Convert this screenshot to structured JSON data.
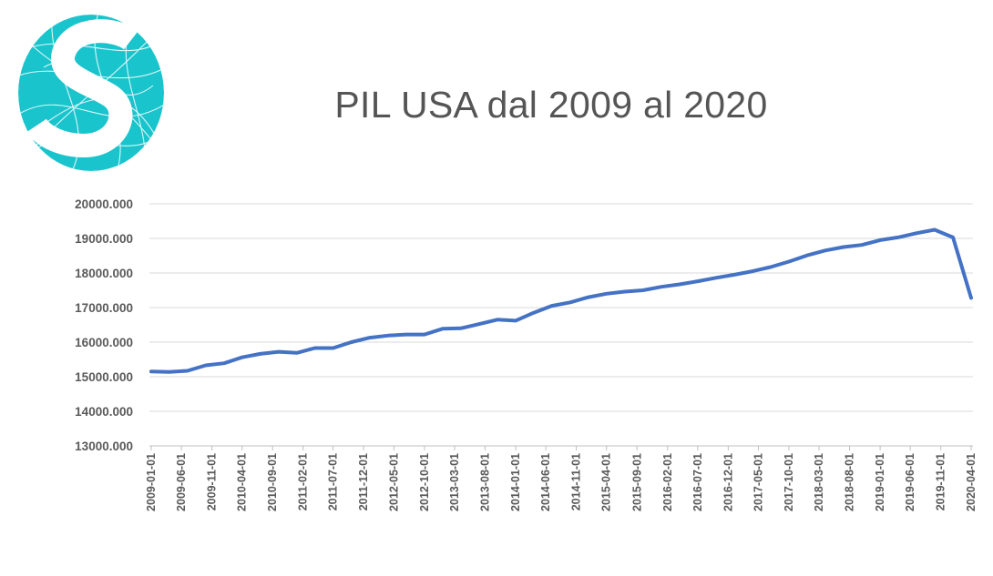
{
  "title": "PIL USA dal 2009 al 2020",
  "colors": {
    "line": "#4472C4",
    "grid": "#d9d9d9",
    "text": "#595959",
    "logo": "#19C4CC"
  },
  "logo": {
    "icon": "stylized-s-logo-icon"
  },
  "chart_data": {
    "type": "line",
    "title": "PIL USA dal 2009 al 2020",
    "xlabel": "",
    "ylabel": "",
    "ylim": [
      13000,
      20000
    ],
    "yticks": [
      "20000.000",
      "19000.000",
      "18000.000",
      "17000.000",
      "16000.000",
      "15000.000",
      "14000.000",
      "13000.000"
    ],
    "xtick_labels": [
      "2009-01-01",
      "2009-06-01",
      "2009-11-01",
      "2010-04-01",
      "2010-09-01",
      "2011-02-01",
      "2011-07-01",
      "2011-12-01",
      "2012-05-01",
      "2012-10-01",
      "2013-03-01",
      "2013-08-01",
      "2014-01-01",
      "2014-06-01",
      "2014-11-01",
      "2015-04-01",
      "2015-09-01",
      "2016-02-01",
      "2016-07-01",
      "2016-12-01",
      "2017-05-01",
      "2017-10-01",
      "2018-03-01",
      "2018-08-01",
      "2019-01-01",
      "2019-06-01",
      "2019-11-01",
      "2020-04-01"
    ],
    "grid": true,
    "legend": "none",
    "series": [
      {
        "x": [
          "2009-01-01",
          "2009-04-01",
          "2009-07-01",
          "2009-10-01",
          "2010-01-01",
          "2010-04-01",
          "2010-07-01",
          "2010-10-01",
          "2011-01-01",
          "2011-04-01",
          "2011-07-01",
          "2011-10-01",
          "2012-01-01",
          "2012-04-01",
          "2012-07-01",
          "2012-10-01",
          "2013-01-01",
          "2013-04-01",
          "2013-07-01",
          "2013-10-01",
          "2014-01-01",
          "2014-04-01",
          "2014-07-01",
          "2014-10-01",
          "2015-01-01",
          "2015-04-01",
          "2015-07-01",
          "2015-10-01",
          "2016-01-01",
          "2016-04-01",
          "2016-07-01",
          "2016-10-01",
          "2017-01-01",
          "2017-04-01",
          "2017-07-01",
          "2017-10-01",
          "2018-01-01",
          "2018-04-01",
          "2018-07-01",
          "2018-10-01",
          "2019-01-01",
          "2019-04-01",
          "2019-07-01",
          "2019-10-01",
          "2020-01-01",
          "2020-04-01"
        ],
        "values": [
          15150,
          15140,
          15170,
          15330,
          15390,
          15560,
          15660,
          15720,
          15690,
          15830,
          15830,
          16000,
          16130,
          16190,
          16220,
          16220,
          16390,
          16400,
          16520,
          16650,
          16620,
          16850,
          17050,
          17150,
          17300,
          17400,
          17460,
          17500,
          17600,
          17670,
          17760,
          17860,
          17950,
          18050,
          18170,
          18330,
          18510,
          18650,
          18750,
          18810,
          18950,
          19030,
          19150,
          19250,
          19030,
          17280
        ]
      }
    ]
  }
}
